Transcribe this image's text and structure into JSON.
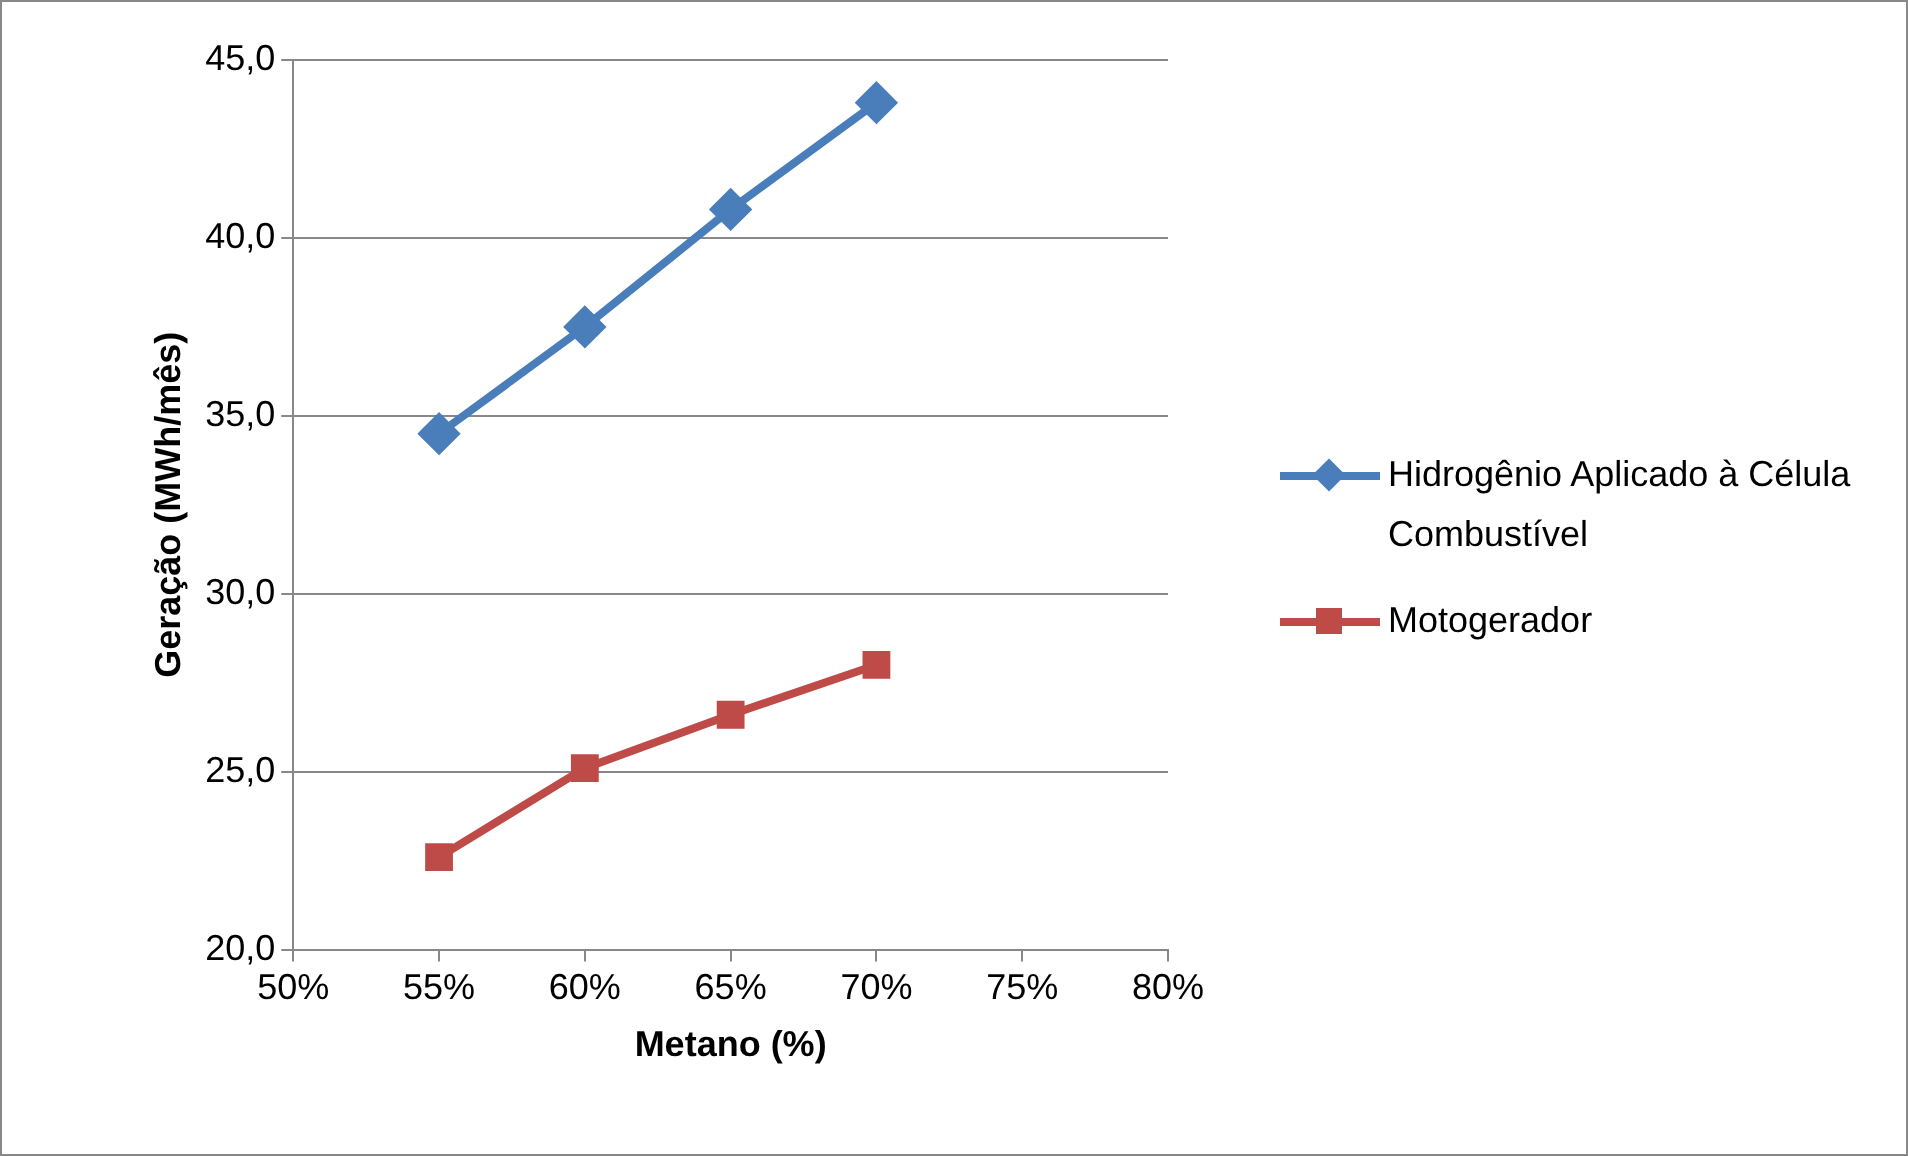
{
  "chart_data": {
    "type": "line",
    "xlabel": "Metano (%)",
    "ylabel": "Geração (MWh/mês)",
    "x": [
      55,
      60,
      65,
      70
    ],
    "series": [
      {
        "name": "Hidrogênio Aplicado à Célula Combustível",
        "color": "#4a7ebb",
        "marker": "diamond",
        "values": [
          34.5,
          37.5,
          40.8,
          43.8
        ]
      },
      {
        "name": "Motogerador",
        "color": "#be4b48",
        "marker": "square",
        "values": [
          22.6,
          25.1,
          26.6,
          28.0
        ]
      }
    ],
    "xlim": [
      50,
      80
    ],
    "xticks": [
      {
        "value": 50,
        "label": "50%"
      },
      {
        "value": 55,
        "label": "55%"
      },
      {
        "value": 60,
        "label": "60%"
      },
      {
        "value": 65,
        "label": "65%"
      },
      {
        "value": 70,
        "label": "70%"
      },
      {
        "value": 75,
        "label": "75%"
      },
      {
        "value": 80,
        "label": "80%"
      }
    ],
    "ylim": [
      20,
      45
    ],
    "yticks": [
      {
        "value": 20,
        "label": "20,0"
      },
      {
        "value": 25,
        "label": "25,0"
      },
      {
        "value": 30,
        "label": "30,0"
      },
      {
        "value": 35,
        "label": "35,0"
      },
      {
        "value": 40,
        "label": "40,0"
      },
      {
        "value": 45,
        "label": "45,0"
      }
    ],
    "grid": "y",
    "legend": "right",
    "line_style": "solid"
  }
}
